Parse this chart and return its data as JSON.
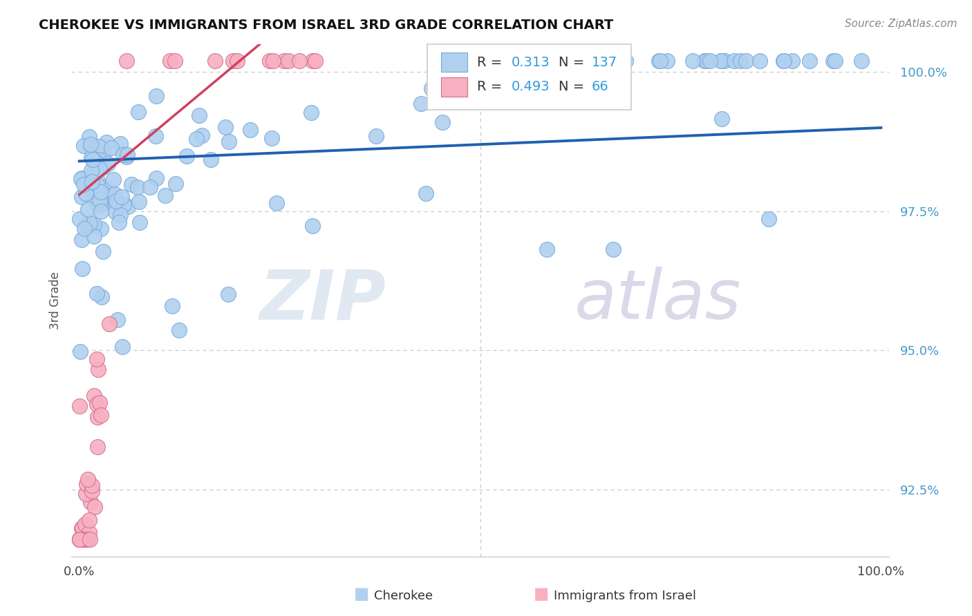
{
  "title": "CHEROKEE VS IMMIGRANTS FROM ISRAEL 3RD GRADE CORRELATION CHART",
  "source": "Source: ZipAtlas.com",
  "ylabel": "3rd Grade",
  "xlim": [
    -0.01,
    1.01
  ],
  "ylim": [
    0.913,
    1.005
  ],
  "ytick_labels": [
    "92.5%",
    "95.0%",
    "97.5%",
    "100.0%"
  ],
  "ytick_values": [
    0.925,
    0.95,
    0.975,
    1.0
  ],
  "xtick_labels": [
    "0.0%",
    "",
    "100.0%"
  ],
  "xtick_values": [
    0.0,
    0.5,
    1.0
  ],
  "legend_blue_R": "0.313",
  "legend_blue_N": "137",
  "legend_pink_R": "0.493",
  "legend_pink_N": "66",
  "blue_color": "#b0d0f0",
  "blue_edge_color": "#7aaad8",
  "blue_line_color": "#2060b0",
  "pink_color": "#f8b0c0",
  "pink_edge_color": "#d07090",
  "pink_line_color": "#d04060",
  "grid_color": "#c8c8c8",
  "watermark_zip_color": "#c8d8e8",
  "watermark_atlas_color": "#c0b8d8",
  "title_color": "#111111",
  "source_color": "#888888",
  "ytick_color": "#4499cc",
  "xtick_color": "#444444"
}
